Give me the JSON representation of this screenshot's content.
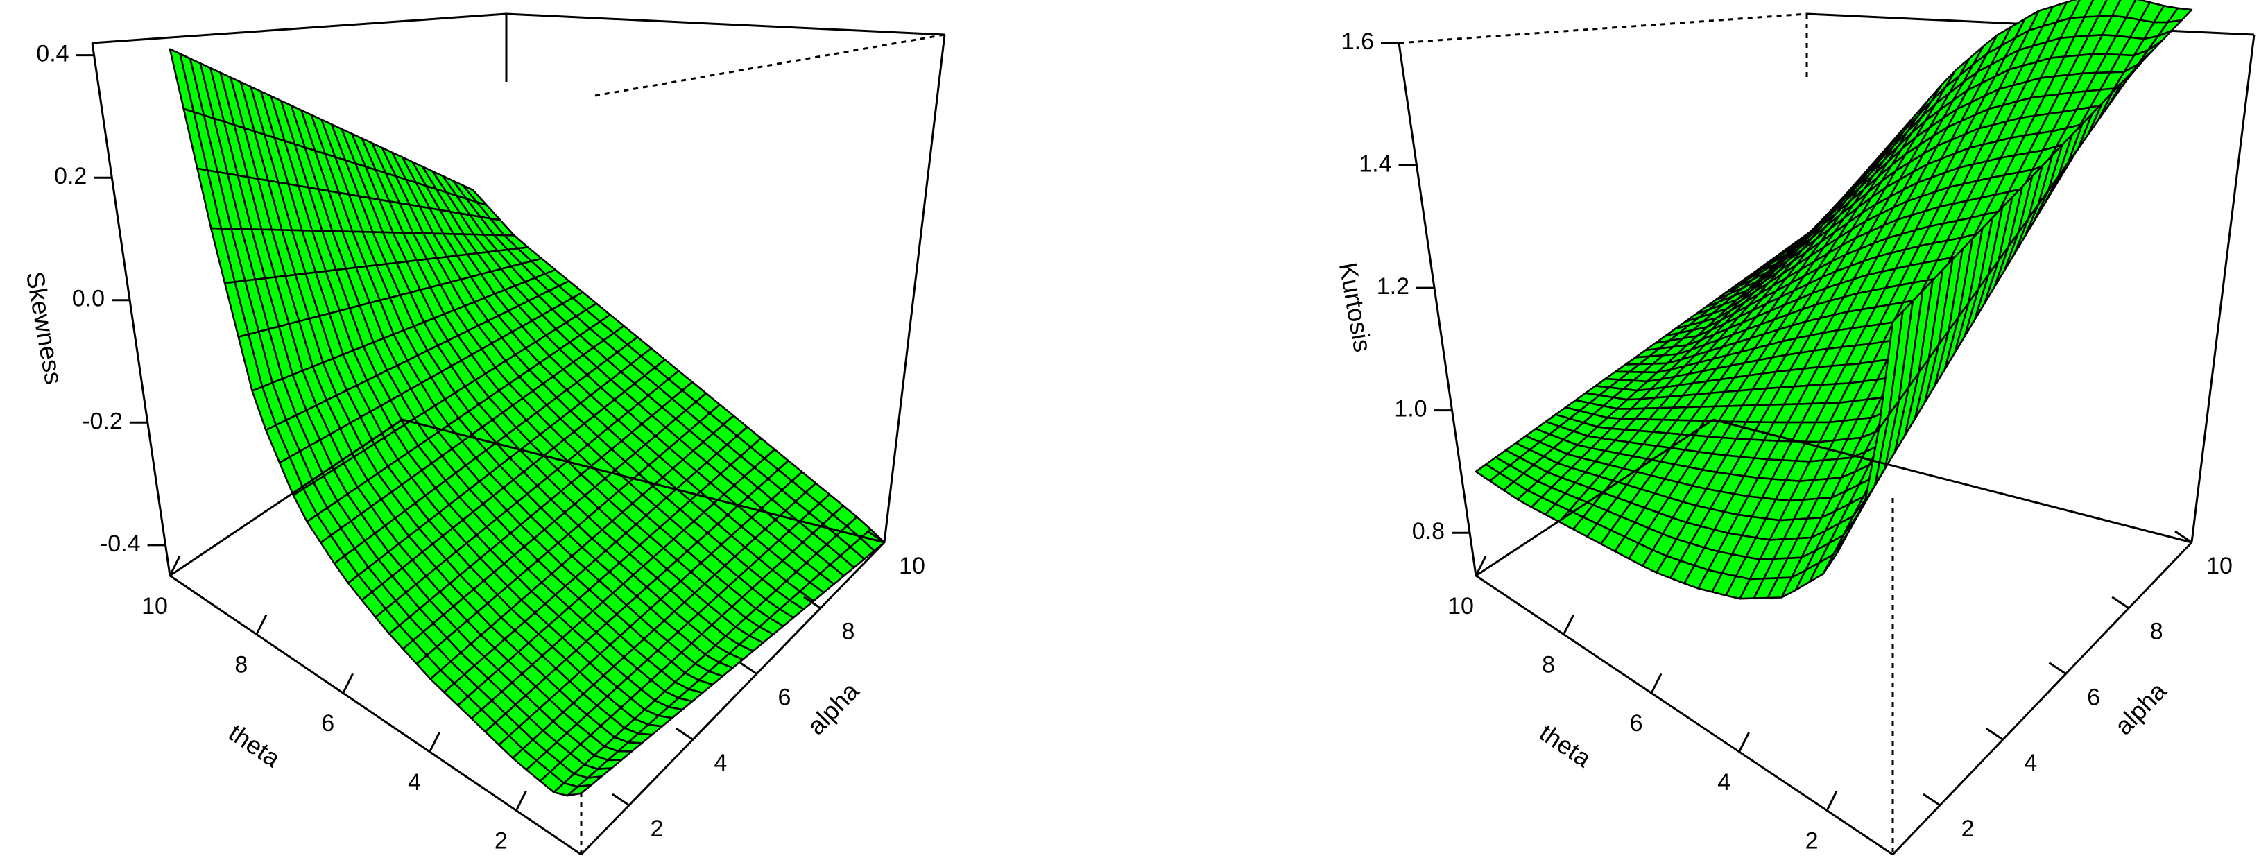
{
  "colors": {
    "surface": "#00ff00",
    "mesh": "#000000",
    "background": "#ffffff"
  },
  "chart_data": [
    {
      "type": "surface",
      "xlabel": "theta",
      "ylabel": "alpha",
      "zlabel": "Skewness",
      "x_ticks": [
        "2",
        "4",
        "6",
        "8",
        "10"
      ],
      "y_ticks": [
        "2",
        "4",
        "6",
        "8",
        "10"
      ],
      "z_ticks": [
        "-0.4",
        "-0.2",
        "0.0",
        "0.2",
        "0.4"
      ],
      "xlim": [
        0.5,
        10
      ],
      "ylim": [
        0.5,
        10
      ],
      "zlim": [
        -0.45,
        0.42
      ],
      "grid": false,
      "surface_profile": {
        "theta": [
          0.5,
          1,
          2,
          3,
          4,
          5,
          6,
          7,
          8,
          9,
          10
        ],
        "alpha_at_0_5": [
          -0.35,
          -0.38,
          -0.37,
          -0.35,
          -0.33,
          -0.3,
          -0.26,
          -0.2,
          -0.08,
          0.15,
          0.41
        ],
        "alpha_at_10": [
          -0.45,
          -0.44,
          -0.43,
          -0.42,
          -0.41,
          -0.4,
          -0.39,
          -0.38,
          -0.37,
          -0.36,
          -0.33
        ]
      }
    },
    {
      "type": "surface",
      "xlabel": "theta",
      "ylabel": "alpha",
      "zlabel": "Kurtosis",
      "x_ticks": [
        "2",
        "4",
        "6",
        "8",
        "10"
      ],
      "y_ticks": [
        "2",
        "4",
        "6",
        "8",
        "10"
      ],
      "z_ticks": [
        "0.8",
        "1.0",
        "1.2",
        "1.4",
        "1.6"
      ],
      "xlim": [
        0.5,
        10
      ],
      "ylim": [
        0.5,
        10
      ],
      "zlim": [
        0.73,
        1.6
      ],
      "grid": false,
      "surface_profile": {
        "theta": [
          0.5,
          1,
          2,
          3,
          4,
          5,
          6,
          7,
          8,
          9,
          10
        ],
        "alpha_at_0_5": [
          1.6,
          1.3,
          1.12,
          1.03,
          0.98,
          0.95,
          0.93,
          0.92,
          0.91,
          0.9,
          0.9
        ],
        "alpha_at_10": [
          1.6,
          1.58,
          1.55,
          1.5,
          1.43,
          1.34,
          1.23,
          1.1,
          0.97,
          0.84,
          0.74
        ]
      }
    }
  ]
}
